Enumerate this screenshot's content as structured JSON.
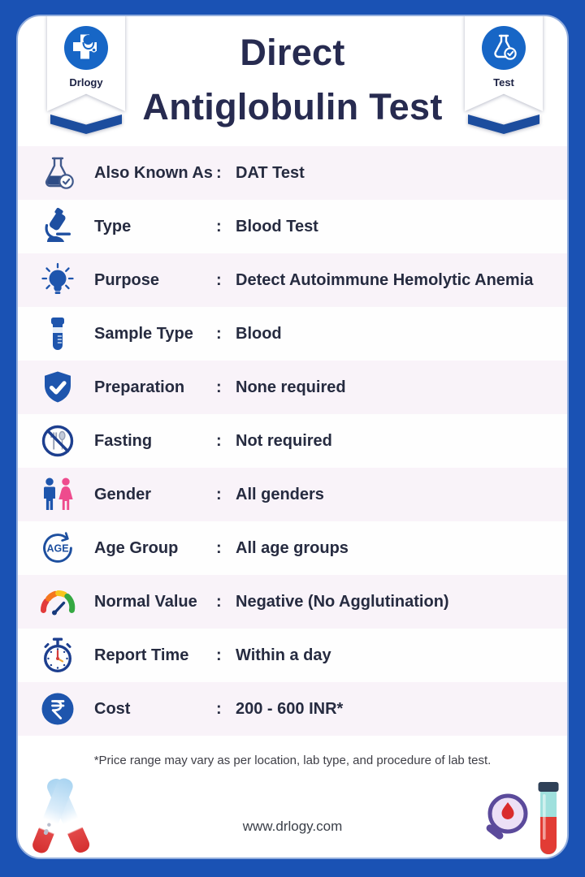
{
  "title": {
    "line1": "Direct",
    "line2": "Antiglobulin Test"
  },
  "badges": {
    "left": {
      "label": "Drlogy",
      "icon": "drlogy-logo-icon"
    },
    "right": {
      "label": "Test",
      "icon": "test-flask-badge-icon"
    }
  },
  "rows": [
    {
      "icon": "flask-check-icon",
      "label": "Also Known As",
      "separator": ":",
      "value": "DAT Test"
    },
    {
      "icon": "microscope-icon",
      "label": "Type",
      "separator": ":",
      "value": "Blood Test"
    },
    {
      "icon": "lightbulb-icon",
      "label": "Purpose",
      "separator": ":",
      "value": "Detect Autoimmune Hemolytic Anemia"
    },
    {
      "icon": "sample-tube-icon",
      "label": "Sample Type",
      "separator": ":",
      "value": "Blood"
    },
    {
      "icon": "shield-check-icon",
      "label": "Preparation",
      "separator": ":",
      "value": "None required"
    },
    {
      "icon": "no-fasting-icon",
      "label": "Fasting",
      "separator": ":",
      "value": "Not required"
    },
    {
      "icon": "gender-icon",
      "label": "Gender",
      "separator": ":",
      "value": "All genders"
    },
    {
      "icon": "age-group-icon",
      "label": "Age Group",
      "separator": ":",
      "value": "All age groups"
    },
    {
      "icon": "gauge-icon",
      "label": "Normal Value",
      "separator": ":",
      "value": "Negative (No Agglutination)"
    },
    {
      "icon": "stopwatch-icon",
      "label": "Report Time",
      "separator": ":",
      "value": "Within a day"
    },
    {
      "icon": "rupee-circle-icon",
      "label": "Cost",
      "separator": ":",
      "value": "200 - 600 INR*"
    }
  ],
  "footnote": "*Price range may vary as per location, lab type, and procedure of lab test.",
  "footer": {
    "website": "www.drlogy.com"
  },
  "colors": {
    "frame_blue": "#1a52b4",
    "chevron_blue": "#1c4d9e",
    "icon_blue": "#1e55ad",
    "badge_circle_blue": "#1766c6",
    "title_navy": "#272b50",
    "row_text": "#262b40",
    "row_stripe": "#f9f3f9",
    "female_pink": "#ee4b8d",
    "footnote_gray": "#3e3e46"
  }
}
